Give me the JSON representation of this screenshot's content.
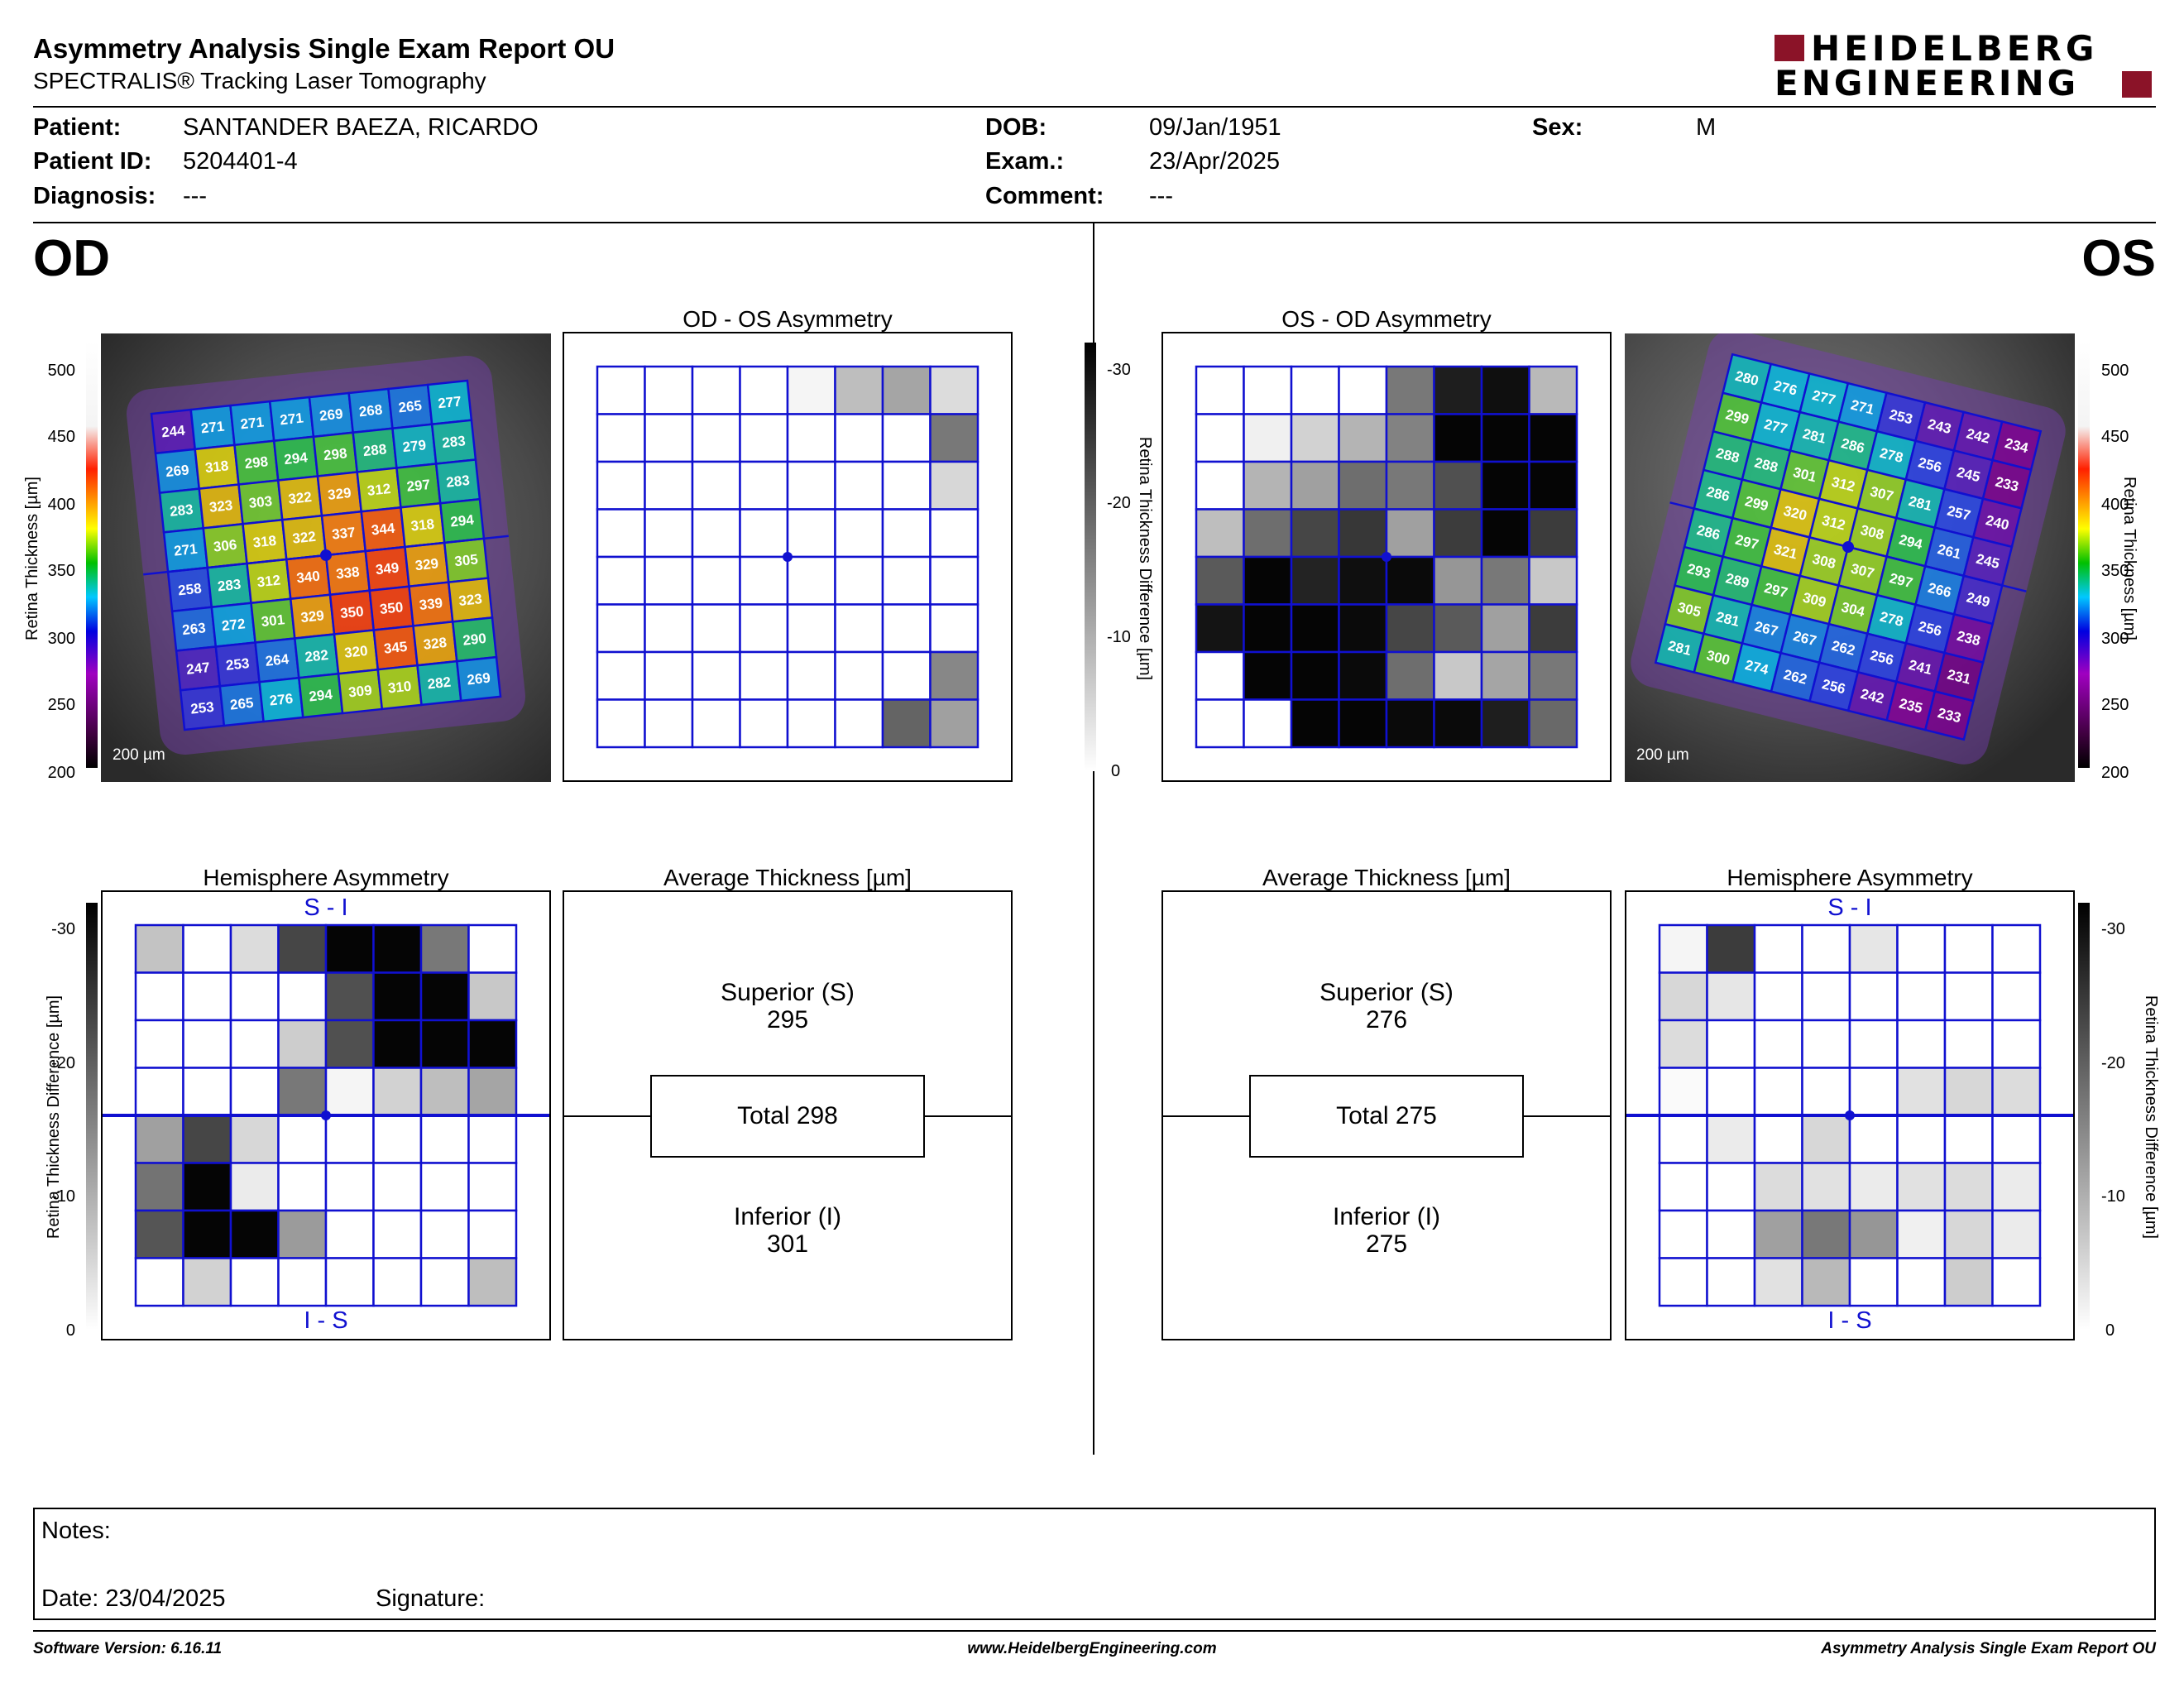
{
  "header": {
    "title": "Asymmetry Analysis Single Exam Report OU",
    "subtitle": "SPECTRALIS® Tracking Laser Tomography",
    "logo_line1": "HEIDELBERG",
    "logo_line2": "ENGINEERING"
  },
  "patient": {
    "patient_label": "Patient:",
    "patient_value": "SANTANDER BAEZA, RICARDO",
    "id_label": "Patient ID:",
    "id_value": "5204401-4",
    "diagnosis_label": "Diagnosis:",
    "diagnosis_value": "---",
    "dob_label": "DOB:",
    "dob_value": "09/Jan/1951",
    "exam_label": "Exam.:",
    "exam_value": "23/Apr/2025",
    "comment_label": "Comment:",
    "comment_value": "---",
    "sex_label": "Sex:",
    "sex_value": "M"
  },
  "eyes": {
    "od": "OD",
    "os": "OS"
  },
  "thickness_scale": {
    "label": "Retina  Thickness [µm]",
    "ticks": [
      "500",
      "450",
      "400",
      "350",
      "300",
      "250",
      "200"
    ]
  },
  "difference_scale": {
    "label": "Retina Thickness Difference [µm]",
    "ticks": [
      "-30",
      "-20",
      "-10",
      "0"
    ]
  },
  "scale_bar": "200 µm",
  "od_map_values": [
    [
      "244",
      "271",
      "271",
      "271",
      "269",
      "268",
      "265",
      "277"
    ],
    [
      "269",
      "318",
      "298",
      "294",
      "298",
      "288",
      "279",
      "283"
    ],
    [
      "283",
      "323",
      "303",
      "322",
      "329",
      "312",
      "297",
      "283"
    ],
    [
      "271",
      "306",
      "318",
      "322",
      "337",
      "344",
      "318",
      "294"
    ],
    [
      "258",
      "283",
      "312",
      "340",
      "338",
      "349",
      "329",
      "305"
    ],
    [
      "263",
      "272",
      "301",
      "329",
      "350",
      "350",
      "339",
      "323"
    ],
    [
      "247",
      "253",
      "264",
      "282",
      "320",
      "345",
      "328",
      "290"
    ],
    [
      "253",
      "265",
      "276",
      "294",
      "309",
      "310",
      "282",
      "269"
    ]
  ],
  "os_map_values": [
    [
      "280",
      "276",
      "277",
      "271",
      "253",
      "243",
      "242",
      "234"
    ],
    [
      "299",
      "277",
      "281",
      "286",
      "278",
      "256",
      "245",
      "233"
    ],
    [
      "288",
      "288",
      "301",
      "312",
      "307",
      "281",
      "257",
      "240"
    ],
    [
      "286",
      "299",
      "320",
      "312",
      "308",
      "294",
      "261",
      "245"
    ],
    [
      "286",
      "297",
      "321",
      "308",
      "307",
      "297",
      "266",
      "249"
    ],
    [
      "293",
      "289",
      "297",
      "309",
      "304",
      "278",
      "256",
      "238"
    ],
    [
      "305",
      "281",
      "267",
      "267",
      "262",
      "256",
      "241",
      "231"
    ],
    [
      "281",
      "300",
      "274",
      "262",
      "256",
      "242",
      "235",
      "233"
    ]
  ],
  "od_os_asymmetry": {
    "title": "OD - OS Asymmetry",
    "grid": [
      [
        255,
        255,
        255,
        255,
        245,
        190,
        165,
        220
      ],
      [
        255,
        255,
        255,
        255,
        255,
        255,
        255,
        120
      ],
      [
        255,
        255,
        255,
        255,
        255,
        255,
        255,
        215
      ],
      [
        255,
        255,
        255,
        255,
        255,
        255,
        255,
        255
      ],
      [
        255,
        255,
        255,
        255,
        255,
        255,
        255,
        255
      ],
      [
        255,
        255,
        255,
        255,
        255,
        255,
        255,
        255
      ],
      [
        255,
        255,
        255,
        255,
        255,
        255,
        255,
        135
      ],
      [
        255,
        255,
        255,
        255,
        255,
        255,
        100,
        160
      ]
    ]
  },
  "os_od_asymmetry": {
    "title": "OS - OD Asymmetry",
    "grid": [
      [
        255,
        255,
        255,
        255,
        120,
        30,
        15,
        185
      ],
      [
        255,
        240,
        210,
        180,
        130,
        5,
        5,
        5
      ],
      [
        255,
        180,
        160,
        110,
        120,
        80,
        5,
        5
      ],
      [
        190,
        110,
        70,
        55,
        160,
        60,
        5,
        60
      ],
      [
        90,
        5,
        35,
        15,
        10,
        150,
        120,
        200
      ],
      [
        20,
        5,
        5,
        10,
        70,
        90,
        160,
        60
      ],
      [
        255,
        5,
        5,
        10,
        110,
        200,
        165,
        120
      ],
      [
        255,
        255,
        5,
        5,
        10,
        10,
        30,
        105
      ]
    ]
  },
  "od_hemisphere": {
    "title": "Hemisphere Asymmetry",
    "top_label": "S - I",
    "bottom_label": "I - S",
    "grid": [
      [
        195,
        255,
        220,
        70,
        5,
        5,
        120,
        255
      ],
      [
        255,
        255,
        255,
        255,
        80,
        5,
        5,
        200
      ],
      [
        255,
        255,
        255,
        205,
        80,
        5,
        5,
        5
      ],
      [
        255,
        255,
        255,
        120,
        245,
        210,
        190,
        165
      ],
      [
        160,
        70,
        215,
        255,
        255,
        255,
        255,
        255
      ],
      [
        115,
        5,
        235,
        255,
        255,
        255,
        255,
        255
      ],
      [
        85,
        5,
        5,
        155,
        255,
        255,
        255,
        255
      ],
      [
        255,
        210,
        255,
        255,
        255,
        255,
        255,
        190
      ]
    ]
  },
  "os_hemisphere": {
    "title": "Hemisphere Asymmetry",
    "top_label": "S - I",
    "bottom_label": "I - S",
    "grid": [
      [
        245,
        60,
        255,
        255,
        230,
        255,
        255,
        255
      ],
      [
        215,
        230,
        255,
        255,
        255,
        255,
        255,
        255
      ],
      [
        220,
        255,
        255,
        255,
        255,
        255,
        255,
        255
      ],
      [
        250,
        255,
        255,
        255,
        255,
        225,
        215,
        220
      ],
      [
        255,
        235,
        255,
        215,
        255,
        255,
        255,
        255
      ],
      [
        255,
        255,
        220,
        225,
        235,
        225,
        220,
        235
      ],
      [
        255,
        255,
        160,
        120,
        150,
        240,
        215,
        235
      ],
      [
        255,
        255,
        225,
        185,
        255,
        255,
        205,
        255
      ]
    ]
  },
  "od_average": {
    "title": "Average Thickness [µm]",
    "superior_label": "Superior (S)",
    "superior_value": "295",
    "total": "Total 298",
    "inferior_label": "Inferior (I)",
    "inferior_value": "301"
  },
  "os_average": {
    "title": "Average Thickness [µm]",
    "superior_label": "Superior (S)",
    "superior_value": "276",
    "total": "Total 275",
    "inferior_label": "Inferior (I)",
    "inferior_value": "275"
  },
  "notes": {
    "notes_label": "Notes:",
    "date_label": "Date: 23/04/2025",
    "signature_label": "Signature:"
  },
  "footer": {
    "software_version": "Software Version: 6.16.11",
    "website": "www.HeidelbergEngineering.com",
    "report_name": "Asymmetry Analysis Single Exam Report OU"
  }
}
